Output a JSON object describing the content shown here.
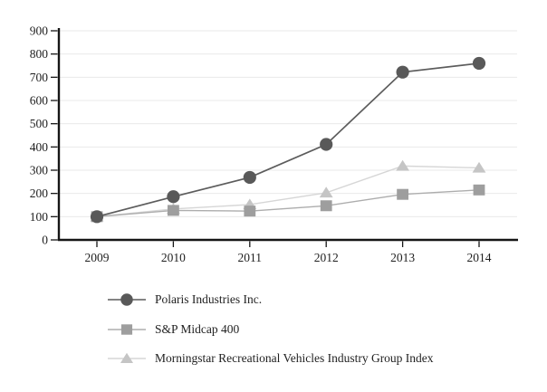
{
  "chart_data": {
    "type": "line",
    "title": "",
    "categories": [
      "2009",
      "2010",
      "2011",
      "2012",
      "2013",
      "2014"
    ],
    "series": [
      {
        "name": "Polaris Industries Inc.",
        "marker": "circle",
        "marker_color": "#595959",
        "line_color": "#5c5c5c",
        "values": [
          100,
          186,
          269,
          411,
          722,
          760
        ]
      },
      {
        "name": "S&P Midcap 400",
        "marker": "square",
        "marker_color": "#9e9e9e",
        "line_color": "#adadad",
        "values": [
          100,
          127,
          124,
          147,
          196,
          215
        ]
      },
      {
        "name": "Morningstar Recreational Vehicles Industry Group Index",
        "marker": "triangle",
        "marker_color": "#c5c5c5",
        "line_color": "#d6d6d6",
        "values": [
          100,
          133,
          152,
          203,
          318,
          310
        ]
      }
    ],
    "xlabel": "",
    "ylabel": "",
    "ylim": [
      0,
      900
    ],
    "ytick_step": 100,
    "y_tick_labels": [
      "0",
      "100",
      "200",
      "300",
      "400",
      "500",
      "600",
      "700",
      "800",
      "900"
    ],
    "grid": true,
    "grid_color": "#eaeaea",
    "axis_color": "#161616",
    "text_color": "#1f1f1f",
    "legend_position": "bottom-left"
  }
}
